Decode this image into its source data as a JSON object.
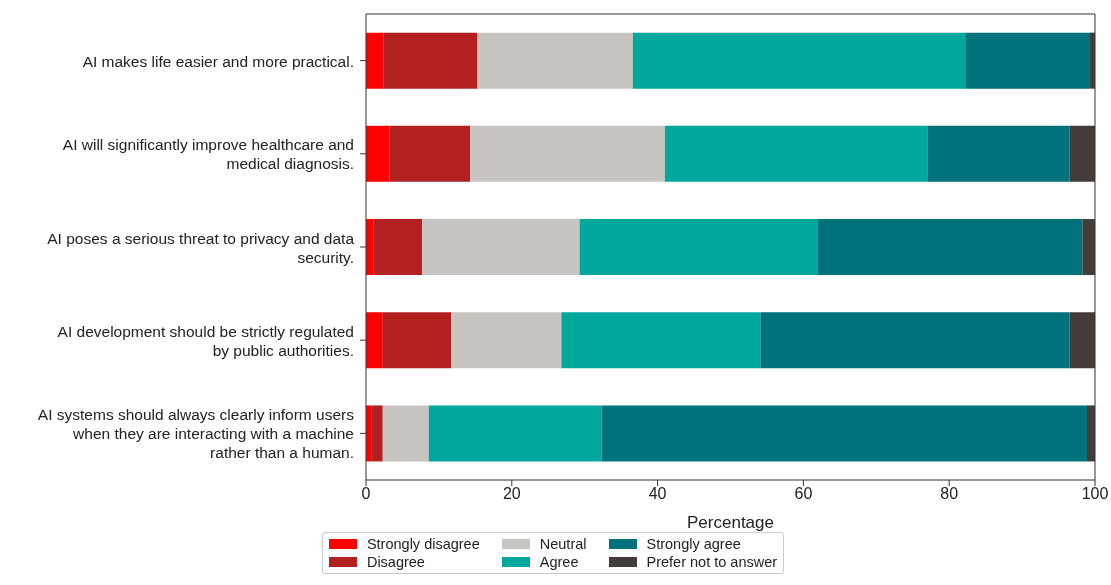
{
  "chart_data": {
    "type": "bar",
    "orientation": "horizontal",
    "stacked": true,
    "xlabel": "Percentage",
    "xlim": [
      0,
      100
    ],
    "xticks": [
      0,
      20,
      40,
      60,
      80,
      100
    ],
    "legend": "bottom",
    "categories": [
      "AI makes life easier and more practical.",
      "AI will significantly improve healthcare and medical diagnosis.",
      "AI poses a serious threat to privacy and data security.",
      "AI development should be strictly regulated by public authorities.",
      "AI systems should always clearly inform users when they are interacting with a machine rather than a human."
    ],
    "series": [
      {
        "name": "Strongly disagree",
        "color": "#ff0000",
        "values": [
          2.4,
          3.2,
          1.0,
          2.3,
          0.8
        ]
      },
      {
        "name": "Disagree",
        "color": "#b22020",
        "values": [
          12.9,
          11.1,
          6.7,
          9.4,
          1.5
        ]
      },
      {
        "name": "Neutral",
        "color": "#c8c4c2",
        "values": [
          21.3,
          26.7,
          21.6,
          15.1,
          6.3
        ]
      },
      {
        "name": "Agree",
        "color": "#00a79d",
        "values": [
          45.6,
          36.0,
          32.7,
          27.3,
          23.7
        ]
      },
      {
        "name": "Strongly agree",
        "color": "#00727c",
        "values": [
          17.0,
          19.5,
          36.3,
          42.4,
          66.6
        ]
      },
      {
        "name": "Prefer not to answer",
        "color": "#433c38",
        "values": [
          0.8,
          3.5,
          1.7,
          3.5,
          1.1
        ]
      }
    ]
  }
}
